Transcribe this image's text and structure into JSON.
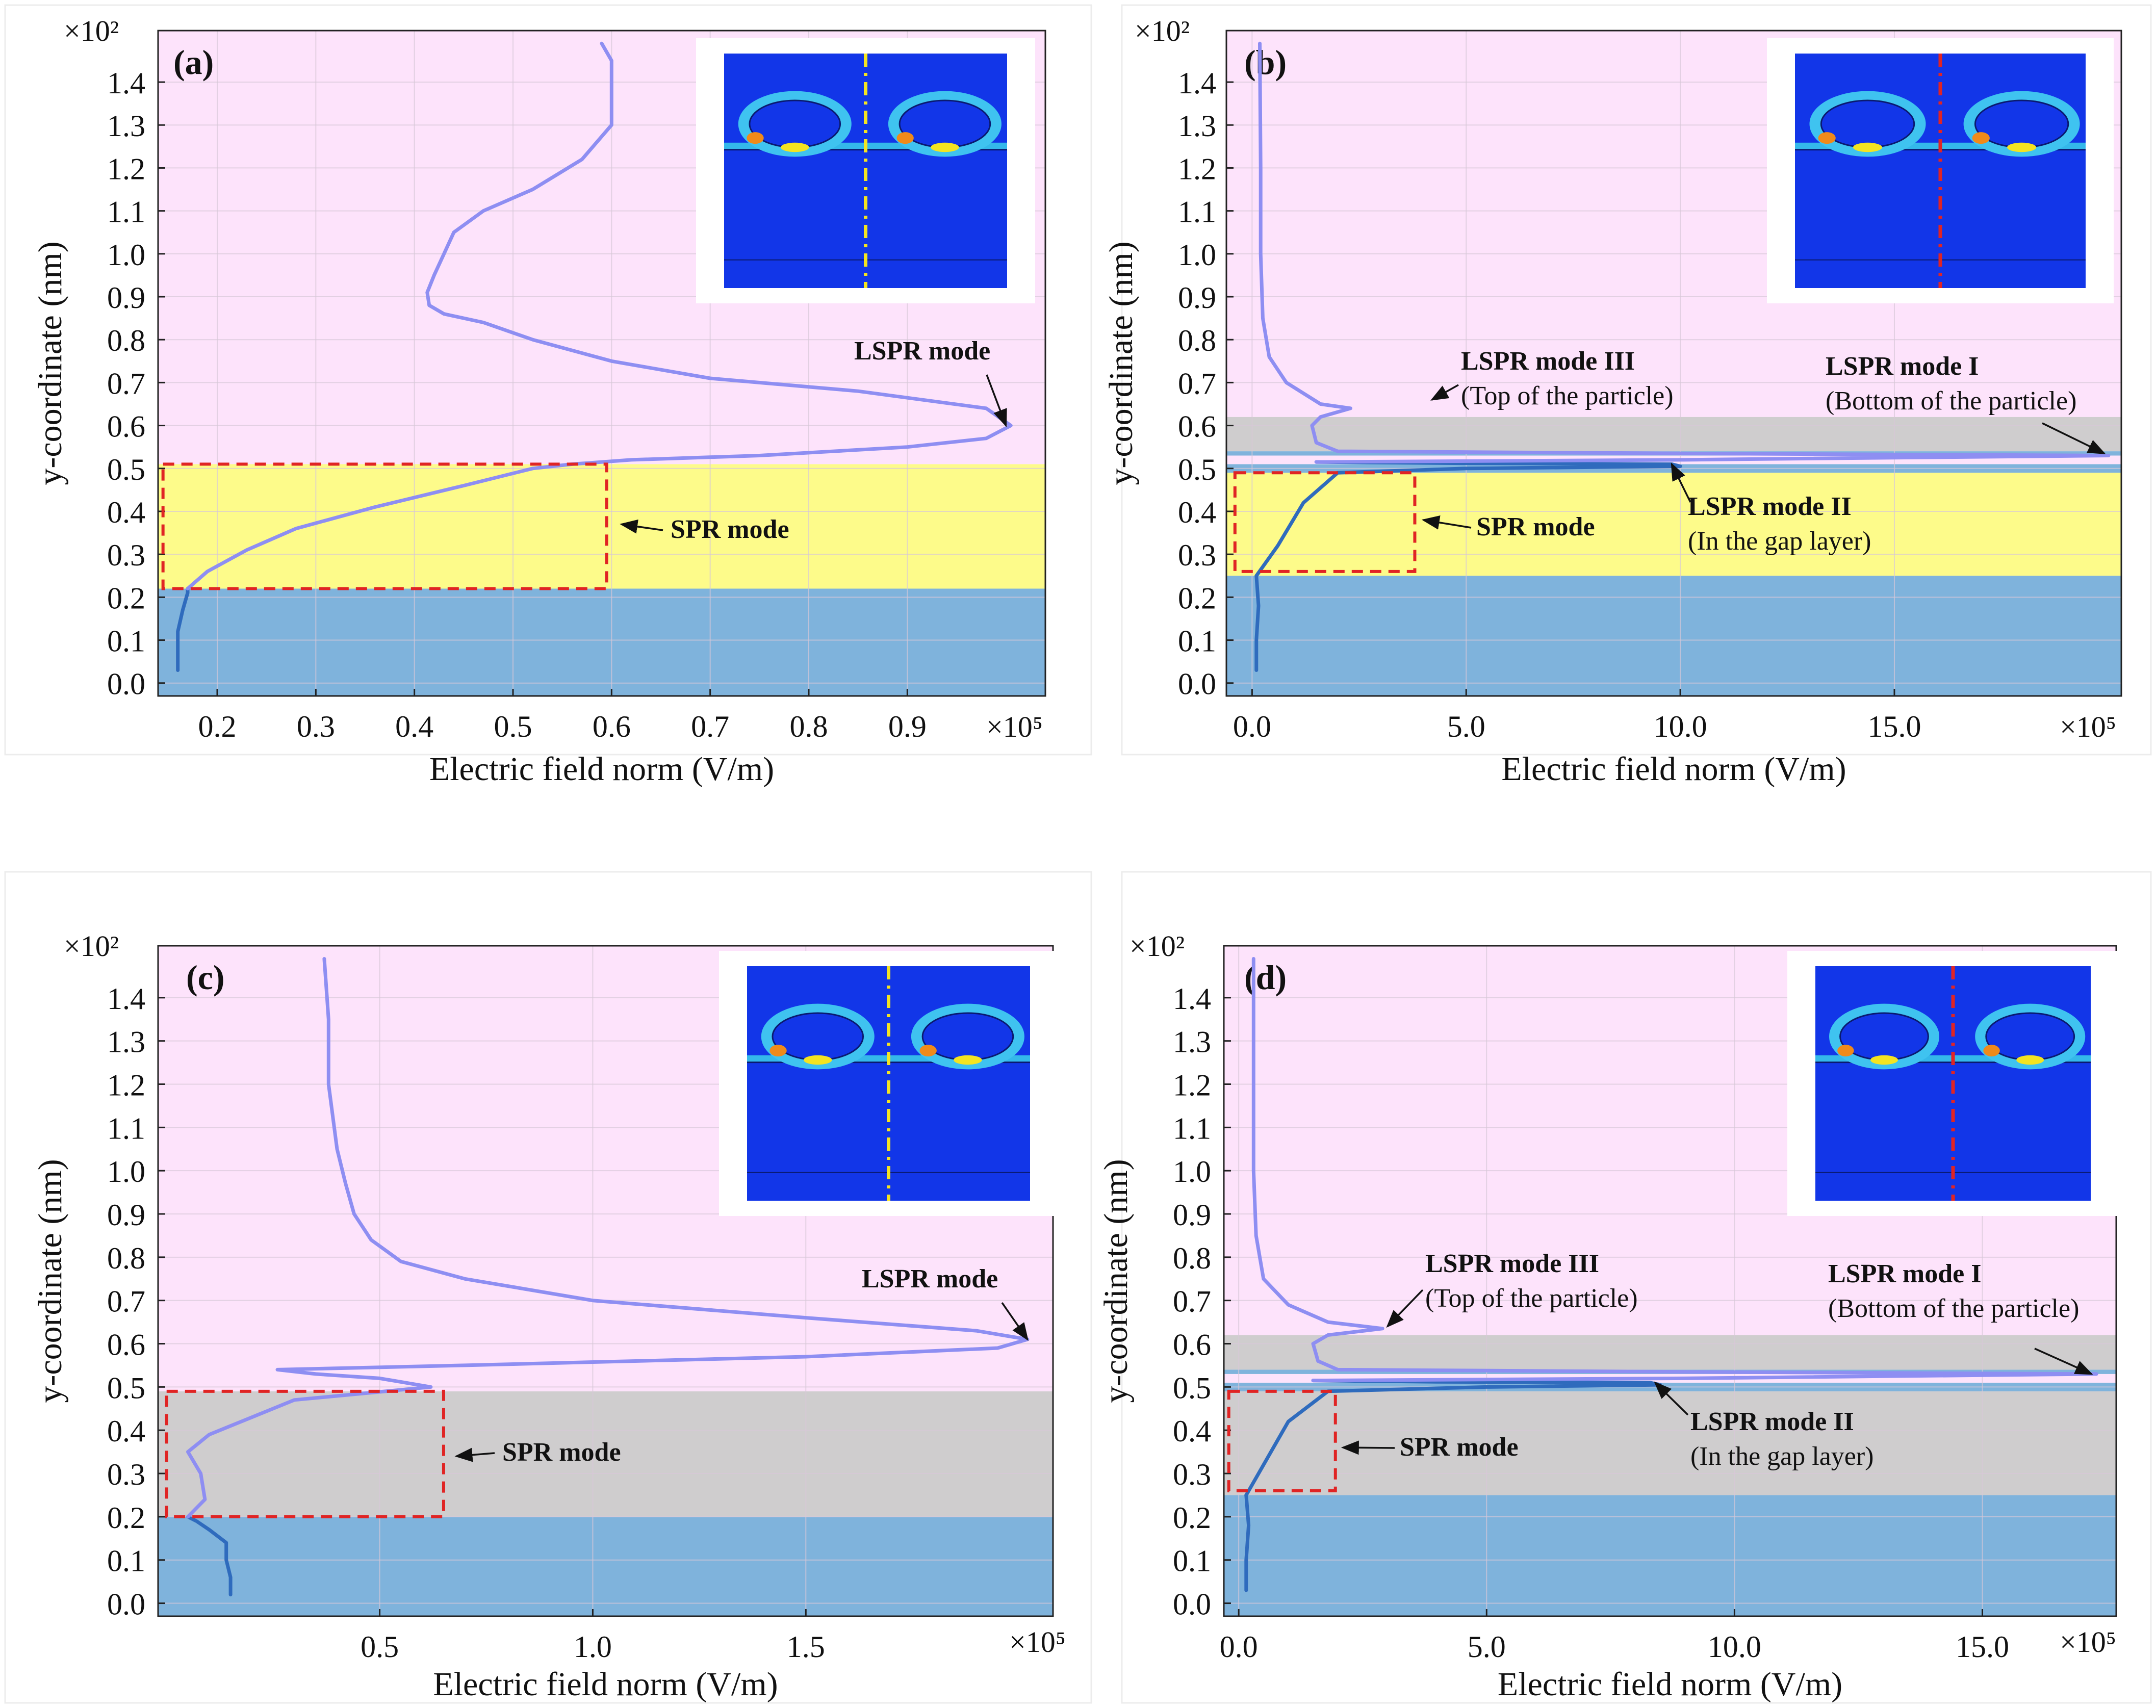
{
  "figure": {
    "colors": {
      "pink": "#fde3fb",
      "yellow": "#fdfb8a",
      "blue": "#7fb3dc",
      "gray": "#cfcdce",
      "curve_light": "#8e8ef2",
      "curve_dark": "#2f6bbd",
      "dash_red": "#e02424",
      "grid": "#d8c8d8",
      "axis": "#222222",
      "inset_blue": "#1236e8",
      "inset_yellow": "#f4e421",
      "inset_red": "#e02424"
    }
  },
  "chart_data": [
    {
      "id": "a",
      "type": "line",
      "panel_label": "(a)",
      "xlabel": "Electric field norm (V/m)",
      "ylabel": "y-coordinate (nm)",
      "x_multiplier": "×10⁵",
      "y_multiplier": "×10²",
      "xlim": [
        0.14,
        1.04
      ],
      "ylim": [
        -0.03,
        1.52
      ],
      "xticks": [
        0.2,
        0.3,
        0.4,
        0.5,
        0.6,
        0.7,
        0.8,
        0.9
      ],
      "xtick_labels": [
        "0.2",
        "0.3",
        "0.4",
        "0.5",
        "0.6",
        "0.7",
        "0.8",
        "0.9"
      ],
      "yticks": [
        0.0,
        0.1,
        0.2,
        0.3,
        0.4,
        0.5,
        0.6,
        0.7,
        0.8,
        0.9,
        1.0,
        1.1,
        1.2,
        1.3,
        1.4
      ],
      "ytick_labels": [
        "0.0",
        "0.1",
        "0.2",
        "0.3",
        "0.4",
        "0.5",
        "0.6",
        "0.7",
        "0.8",
        "0.9",
        "1.0",
        "1.1",
        "1.2",
        "1.3",
        "1.4"
      ],
      "layers": [
        {
          "y0": -0.03,
          "y1": 0.22,
          "color": "blue"
        },
        {
          "y0": 0.22,
          "y1": 0.51,
          "color": "yellow"
        },
        {
          "y0": 0.51,
          "y1": 1.52,
          "color": "pink"
        }
      ],
      "series": [
        {
          "name": "substrate",
          "color": "curve_dark",
          "points": [
            [
              0.16,
              0.03
            ],
            [
              0.16,
              0.08
            ],
            [
              0.16,
              0.12
            ],
            [
              0.165,
              0.17
            ],
            [
              0.17,
              0.21
            ],
            [
              0.17,
              0.22
            ]
          ]
        },
        {
          "name": "field",
          "color": "curve_light",
          "points": [
            [
              0.17,
              0.22
            ],
            [
              0.19,
              0.26
            ],
            [
              0.23,
              0.31
            ],
            [
              0.28,
              0.36
            ],
            [
              0.36,
              0.41
            ],
            [
              0.45,
              0.46
            ],
            [
              0.52,
              0.5
            ],
            [
              0.56,
              0.51
            ],
            [
              0.62,
              0.52
            ],
            [
              0.75,
              0.53
            ],
            [
              0.9,
              0.55
            ],
            [
              0.98,
              0.57
            ],
            [
              1.005,
              0.6
            ],
            [
              0.98,
              0.64
            ],
            [
              0.85,
              0.68
            ],
            [
              0.7,
              0.71
            ],
            [
              0.6,
              0.75
            ],
            [
              0.52,
              0.8
            ],
            [
              0.47,
              0.84
            ],
            [
              0.43,
              0.86
            ],
            [
              0.415,
              0.88
            ],
            [
              0.413,
              0.91
            ],
            [
              0.42,
              0.95
            ],
            [
              0.43,
              1.0
            ],
            [
              0.44,
              1.05
            ],
            [
              0.47,
              1.1
            ],
            [
              0.52,
              1.15
            ],
            [
              0.57,
              1.22
            ],
            [
              0.6,
              1.3
            ],
            [
              0.6,
              1.45
            ],
            [
              0.59,
              1.49
            ]
          ]
        }
      ],
      "boxes": [
        {
          "x0": 0.145,
          "x1": 0.595,
          "y0": 0.22,
          "y1": 0.51
        }
      ],
      "annotations": [
        {
          "lines": [
            "LSPR mode"
          ],
          "bold": [
            true
          ],
          "arrow_to": [
            1.0,
            0.6
          ]
        },
        {
          "lines": [
            "SPR mode"
          ],
          "bold": [
            true
          ],
          "arrow_to": [
            0.61,
            0.37
          ]
        }
      ],
      "inset": {
        "line_color": "inset_yellow"
      }
    },
    {
      "id": "b",
      "type": "line",
      "panel_label": "(b)",
      "xlabel": "Electric field norm (V/m)",
      "ylabel": "y-coordinate (nm)",
      "x_multiplier": "×10⁵",
      "y_multiplier": "×10²",
      "xlim": [
        -0.6,
        20.3
      ],
      "ylim": [
        -0.03,
        1.52
      ],
      "xticks": [
        0.0,
        5.0,
        10.0,
        15.0
      ],
      "xtick_labels": [
        "0.0",
        "5.0",
        "10.0",
        "15.0"
      ],
      "yticks": [
        0.0,
        0.1,
        0.2,
        0.3,
        0.4,
        0.5,
        0.6,
        0.7,
        0.8,
        0.9,
        1.0,
        1.1,
        1.2,
        1.3,
        1.4
      ],
      "ytick_labels": [
        "0.0",
        "0.1",
        "0.2",
        "0.3",
        "0.4",
        "0.5",
        "0.6",
        "0.7",
        "0.8",
        "0.9",
        "1.0",
        "1.1",
        "1.2",
        "1.3",
        "1.4"
      ],
      "layers": [
        {
          "y0": -0.03,
          "y1": 0.25,
          "color": "blue"
        },
        {
          "y0": 0.25,
          "y1": 0.49,
          "color": "yellow"
        },
        {
          "y0": 0.49,
          "y1": 0.51,
          "color": "blue"
        },
        {
          "y0": 0.51,
          "y1": 0.53,
          "color": "pink"
        },
        {
          "y0": 0.53,
          "y1": 0.54,
          "color": "blue"
        },
        {
          "y0": 0.54,
          "y1": 0.62,
          "color": "gray"
        },
        {
          "y0": 0.62,
          "y1": 1.52,
          "color": "pink"
        }
      ],
      "series": [
        {
          "name": "substrate",
          "color": "curve_dark",
          "points": [
            [
              0.1,
              0.03
            ],
            [
              0.1,
              0.1
            ],
            [
              0.15,
              0.18
            ],
            [
              0.1,
              0.25
            ]
          ]
        },
        {
          "name": "gap",
          "color": "curve_dark",
          "points": [
            [
              0.1,
              0.25
            ],
            [
              0.6,
              0.32
            ],
            [
              1.2,
              0.42
            ],
            [
              2.0,
              0.49
            ],
            [
              5.0,
              0.5
            ],
            [
              10.0,
              0.505
            ],
            [
              9.8,
              0.51
            ],
            [
              5.0,
              0.512
            ],
            [
              1.5,
              0.515
            ]
          ]
        },
        {
          "name": "field",
          "color": "curve_light",
          "points": [
            [
              1.5,
              0.515
            ],
            [
              10.0,
              0.52
            ],
            [
              20.0,
              0.53
            ],
            [
              10.0,
              0.535
            ],
            [
              2.0,
              0.54
            ],
            [
              1.5,
              0.56
            ],
            [
              1.4,
              0.6
            ],
            [
              1.6,
              0.62
            ],
            [
              2.3,
              0.64
            ],
            [
              1.6,
              0.65
            ],
            [
              0.8,
              0.7
            ],
            [
              0.4,
              0.76
            ],
            [
              0.25,
              0.85
            ],
            [
              0.2,
              1.0
            ],
            [
              0.2,
              1.2
            ],
            [
              0.18,
              1.49
            ]
          ]
        }
      ],
      "boxes": [
        {
          "x0": -0.4,
          "x1": 3.8,
          "y0": 0.26,
          "y1": 0.49
        }
      ],
      "annotations": [
        {
          "lines": [
            "LSPR mode III",
            "(Top of the particle)"
          ],
          "bold": [
            true,
            false
          ],
          "arrow_to": [
            4.2,
            0.66
          ]
        },
        {
          "lines": [
            "LSPR mode I",
            "(Bottom of the particle)"
          ],
          "bold": [
            true,
            false
          ],
          "arrow_to": [
            19.9,
            0.535
          ]
        },
        {
          "lines": [
            "LSPR mode II",
            "(In the gap layer)"
          ],
          "bold": [
            true,
            false
          ],
          "arrow_to": [
            9.8,
            0.51
          ]
        },
        {
          "lines": [
            "SPR mode"
          ],
          "bold": [
            true
          ],
          "arrow_to": [
            4.0,
            0.38
          ]
        }
      ],
      "inset": {
        "line_color": "inset_red"
      }
    },
    {
      "id": "c",
      "type": "line",
      "panel_label": "(c)",
      "xlabel": "Electric field norm (V/m)",
      "ylabel": "y-coordinate (nm)",
      "x_multiplier": "×10⁵",
      "y_multiplier": "×10²",
      "xlim": [
        -0.02,
        2.08
      ],
      "ylim": [
        -0.03,
        1.52
      ],
      "xticks": [
        0.5,
        1.0,
        1.5
      ],
      "xtick_labels": [
        "0.5",
        "1.0",
        "1.5"
      ],
      "yticks": [
        0.0,
        0.1,
        0.2,
        0.3,
        0.4,
        0.5,
        0.6,
        0.7,
        0.8,
        0.9,
        1.0,
        1.1,
        1.2,
        1.3,
        1.4
      ],
      "ytick_labels": [
        "0.0",
        "0.1",
        "0.2",
        "0.3",
        "0.4",
        "0.5",
        "0.6",
        "0.7",
        "0.8",
        "0.9",
        "1.0",
        "1.1",
        "1.2",
        "1.3",
        "1.4"
      ],
      "layers": [
        {
          "y0": -0.03,
          "y1": 0.2,
          "color": "blue"
        },
        {
          "y0": 0.2,
          "y1": 0.49,
          "color": "gray"
        },
        {
          "y0": 0.49,
          "y1": 1.52,
          "color": "pink"
        }
      ],
      "series": [
        {
          "name": "substrate",
          "color": "curve_dark",
          "points": [
            [
              0.15,
              0.02
            ],
            [
              0.15,
              0.06
            ],
            [
              0.14,
              0.1
            ],
            [
              0.14,
              0.14
            ],
            [
              0.1,
              0.17
            ],
            [
              0.07,
              0.19
            ],
            [
              0.05,
              0.2
            ]
          ]
        },
        {
          "name": "field",
          "color": "curve_light",
          "points": [
            [
              0.05,
              0.2
            ],
            [
              0.09,
              0.24
            ],
            [
              0.08,
              0.3
            ],
            [
              0.05,
              0.35
            ],
            [
              0.1,
              0.39
            ],
            [
              0.2,
              0.43
            ],
            [
              0.3,
              0.47
            ],
            [
              0.62,
              0.5
            ],
            [
              0.5,
              0.52
            ],
            [
              0.35,
              0.53
            ],
            [
              0.26,
              0.54
            ],
            [
              0.7,
              0.55
            ],
            [
              1.5,
              0.57
            ],
            [
              1.95,
              0.59
            ],
            [
              2.02,
              0.61
            ],
            [
              1.9,
              0.63
            ],
            [
              1.5,
              0.66
            ],
            [
              1.0,
              0.7
            ],
            [
              0.7,
              0.75
            ],
            [
              0.55,
              0.79
            ],
            [
              0.48,
              0.84
            ],
            [
              0.44,
              0.9
            ],
            [
              0.42,
              0.97
            ],
            [
              0.4,
              1.05
            ],
            [
              0.38,
              1.2
            ],
            [
              0.38,
              1.35
            ],
            [
              0.37,
              1.49
            ]
          ]
        }
      ],
      "boxes": [
        {
          "x0": 0.0,
          "x1": 0.65,
          "y0": 0.2,
          "y1": 0.49
        }
      ],
      "annotations": [
        {
          "lines": [
            "LSPR mode"
          ],
          "bold": [
            true
          ],
          "arrow_to": [
            2.02,
            0.61
          ]
        },
        {
          "lines": [
            "SPR mode"
          ],
          "bold": [
            true
          ],
          "arrow_to": [
            0.68,
            0.34
          ]
        }
      ],
      "inset": {
        "line_color": "inset_yellow"
      }
    },
    {
      "id": "d",
      "type": "line",
      "panel_label": "(d)",
      "xlabel": "Electric field norm (V/m)",
      "ylabel": "y-coordinate (nm)",
      "x_multiplier": "×10⁵",
      "y_multiplier": "×10²",
      "xlim": [
        -0.3,
        17.7
      ],
      "ylim": [
        -0.03,
        1.52
      ],
      "xticks": [
        0.0,
        5.0,
        10.0,
        15.0
      ],
      "xtick_labels": [
        "0.0",
        "5.0",
        "10.0",
        "15.0"
      ],
      "yticks": [
        0.0,
        0.1,
        0.2,
        0.3,
        0.4,
        0.5,
        0.6,
        0.7,
        0.8,
        0.9,
        1.0,
        1.1,
        1.2,
        1.3,
        1.4
      ],
      "ytick_labels": [
        "0.0",
        "0.1",
        "0.2",
        "0.3",
        "0.4",
        "0.5",
        "0.6",
        "0.7",
        "0.8",
        "0.9",
        "1.0",
        "1.1",
        "1.2",
        "1.3",
        "1.4"
      ],
      "layers": [
        {
          "y0": -0.03,
          "y1": 0.25,
          "color": "blue"
        },
        {
          "y0": 0.25,
          "y1": 0.49,
          "color": "gray"
        },
        {
          "y0": 0.49,
          "y1": 0.51,
          "color": "blue"
        },
        {
          "y0": 0.51,
          "y1": 0.53,
          "color": "pink"
        },
        {
          "y0": 0.53,
          "y1": 0.54,
          "color": "blue"
        },
        {
          "y0": 0.54,
          "y1": 0.62,
          "color": "gray"
        },
        {
          "y0": 0.62,
          "y1": 1.52,
          "color": "pink"
        }
      ],
      "series": [
        {
          "name": "substrate",
          "color": "curve_dark",
          "points": [
            [
              0.15,
              0.03
            ],
            [
              0.15,
              0.1
            ],
            [
              0.2,
              0.18
            ],
            [
              0.15,
              0.25
            ]
          ]
        },
        {
          "name": "gap",
          "color": "curve_dark",
          "points": [
            [
              0.15,
              0.25
            ],
            [
              0.5,
              0.32
            ],
            [
              1.0,
              0.42
            ],
            [
              1.8,
              0.49
            ],
            [
              5.0,
              0.5
            ],
            [
              8.5,
              0.505
            ],
            [
              8.3,
              0.51
            ],
            [
              4.0,
              0.512
            ],
            [
              1.5,
              0.515
            ]
          ]
        },
        {
          "name": "field",
          "color": "curve_light",
          "points": [
            [
              1.5,
              0.515
            ],
            [
              9.0,
              0.52
            ],
            [
              17.3,
              0.53
            ],
            [
              9.0,
              0.535
            ],
            [
              2.0,
              0.54
            ],
            [
              1.6,
              0.56
            ],
            [
              1.5,
              0.6
            ],
            [
              1.8,
              0.62
            ],
            [
              2.9,
              0.635
            ],
            [
              1.8,
              0.65
            ],
            [
              1.0,
              0.69
            ],
            [
              0.5,
              0.75
            ],
            [
              0.35,
              0.85
            ],
            [
              0.3,
              1.0
            ],
            [
              0.3,
              1.2
            ],
            [
              0.3,
              1.49
            ]
          ]
        }
      ],
      "boxes": [
        {
          "x0": -0.2,
          "x1": 1.95,
          "y0": 0.26,
          "y1": 0.49
        }
      ],
      "annotations": [
        {
          "lines": [
            "LSPR mode III",
            "(Top of the particle)"
          ],
          "bold": [
            true,
            false
          ],
          "arrow_to": [
            3.0,
            0.64
          ]
        },
        {
          "lines": [
            "LSPR mode I",
            "(Bottom of the particle)"
          ],
          "bold": [
            true,
            false
          ],
          "arrow_to": [
            17.2,
            0.53
          ]
        },
        {
          "lines": [
            "LSPR mode II",
            "(In the gap layer)"
          ],
          "bold": [
            true,
            false
          ],
          "arrow_to": [
            8.4,
            0.51
          ]
        },
        {
          "lines": [
            "SPR mode"
          ],
          "bold": [
            true
          ],
          "arrow_to": [
            2.1,
            0.36
          ]
        }
      ],
      "inset": {
        "line_color": "inset_red"
      }
    }
  ]
}
